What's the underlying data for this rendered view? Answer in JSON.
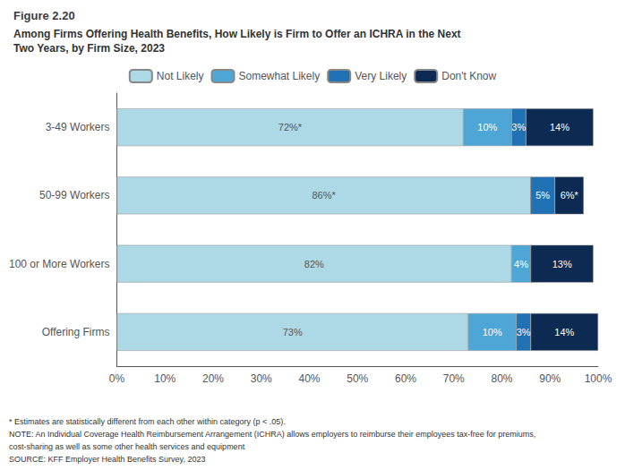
{
  "chart_data": {
    "type": "bar",
    "orientation": "horizontal",
    "stacked": true,
    "title": "Figure 2.20",
    "subtitle": "Among Firms Offering Health Benefits, How Likely is Firm to Offer an ICHRA in the Next\nTwo Years, by Firm Size, 2023",
    "categories": [
      "3-49 Workers",
      "50-99 Workers",
      "100 or More Workers",
      "Offering Firms"
    ],
    "series": [
      {
        "name": "Not Likely",
        "color": "#ADD8E6",
        "values": [
          72,
          86,
          82,
          73
        ],
        "value_labels": [
          "72%*",
          "86%*",
          "82%",
          "73%"
        ]
      },
      {
        "name": "Somewhat Likely",
        "color": "#4DA6D6",
        "values": [
          10,
          0,
          4,
          10
        ],
        "value_labels": [
          "10%",
          null,
          "4%",
          "10%"
        ]
      },
      {
        "name": "Very Likely",
        "color": "#2171B5",
        "values": [
          3,
          5,
          0,
          3
        ],
        "value_labels": [
          "3%",
          "5%",
          null,
          "3%"
        ]
      },
      {
        "name": "Don't Know",
        "color": "#0D2B52",
        "values": [
          14,
          6,
          13,
          14
        ],
        "value_labels": [
          "14%",
          "6%*",
          "13%",
          "14%"
        ]
      }
    ],
    "xlim": [
      0,
      100
    ],
    "xticks": [
      {
        "value": 0,
        "label": "0%"
      },
      {
        "value": 10,
        "label": "10%"
      },
      {
        "value": 20,
        "label": "20%"
      },
      {
        "value": 30,
        "label": "30%"
      },
      {
        "value": 40,
        "label": "40%"
      },
      {
        "value": 50,
        "label": "50%"
      },
      {
        "value": 60,
        "label": "60%"
      },
      {
        "value": 70,
        "label": "70%"
      },
      {
        "value": 80,
        "label": "80%"
      },
      {
        "value": 90,
        "label": "90%"
      },
      {
        "value": 100,
        "label": "100%"
      }
    ],
    "data_labels": true,
    "legend": "top",
    "grid": false,
    "annotations": [
      "* Estimates are statistically different from each other within category (p < .05).",
      "NOTE: An Individual Coverage Health Reimbursement Arrangement (ICHRA) allows employers to reimburse their employees tax-free for premiums,",
      "cost-sharing as well as some other health services and equipment",
      "SOURCE: KFF Employer Health Benefits Survey, 2023"
    ]
  }
}
